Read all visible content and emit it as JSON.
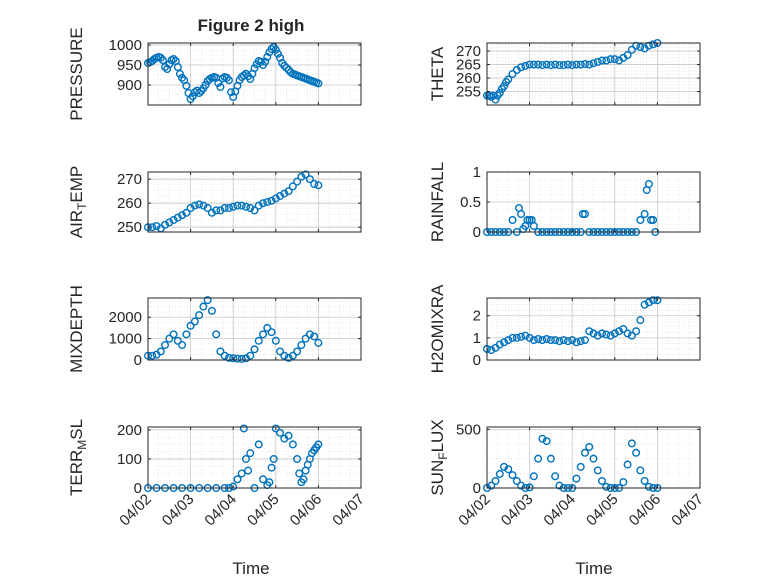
{
  "figure_title": "Figure 2 high",
  "x_axis_label": "Time",
  "x_tick_labels": [
    "04/02",
    "04/03",
    "04/04",
    "04/05",
    "04/06",
    "04/07"
  ],
  "marker_color": "#0072BD",
  "chart_data": [
    {
      "type": "scatter",
      "id": "pressure",
      "title": "Figure 2 high",
      "ylabel": "PRESSURE",
      "xlim": [
        0,
        5
      ],
      "ylim": [
        850,
        1005
      ],
      "yticks": [
        900,
        950,
        1000
      ],
      "grid": true,
      "x": [
        0.0,
        0.05,
        0.1,
        0.15,
        0.2,
        0.25,
        0.3,
        0.35,
        0.4,
        0.45,
        0.5,
        0.55,
        0.6,
        0.65,
        0.7,
        0.75,
        0.8,
        0.85,
        0.9,
        0.95,
        1.0,
        1.05,
        1.1,
        1.15,
        1.2,
        1.25,
        1.3,
        1.35,
        1.4,
        1.45,
        1.5,
        1.55,
        1.6,
        1.65,
        1.7,
        1.75,
        1.8,
        1.85,
        1.9,
        1.95,
        2.0,
        2.05,
        2.1,
        2.15,
        2.2,
        2.25,
        2.3,
        2.35,
        2.4,
        2.45,
        2.5,
        2.55,
        2.6,
        2.65,
        2.7,
        2.75,
        2.8,
        2.85,
        2.9,
        2.95,
        3.0,
        3.05,
        3.1,
        3.15,
        3.2,
        3.25,
        3.3,
        3.35,
        3.4,
        3.45,
        3.5,
        3.55,
        3.6,
        3.65,
        3.7,
        3.75,
        3.8,
        3.85,
        3.9,
        3.95,
        4.0
      ],
      "y": [
        955,
        957,
        960,
        965,
        968,
        970,
        968,
        962,
        945,
        940,
        952,
        962,
        965,
        960,
        945,
        928,
        918,
        912,
        898,
        880,
        865,
        872,
        882,
        886,
        880,
        885,
        892,
        900,
        910,
        915,
        918,
        920,
        918,
        905,
        895,
        916,
        920,
        918,
        912,
        882,
        870,
        884,
        898,
        912,
        920,
        924,
        928,
        922,
        915,
        928,
        942,
        952,
        960,
        958,
        950,
        958,
        970,
        982,
        990,
        995,
        988,
        978,
        968,
        955,
        948,
        943,
        938,
        932,
        928,
        926,
        924,
        922,
        920,
        918,
        916,
        914,
        912,
        910,
        908,
        906,
        904
      ],
      "point_count_note": ""
    },
    {
      "type": "scatter",
      "id": "theta",
      "ylabel": "THETA",
      "xlim": [
        0,
        5
      ],
      "ylim": [
        250,
        273
      ],
      "yticks": [
        255,
        260,
        265,
        270
      ],
      "grid": true,
      "x": [
        0.0,
        0.05,
        0.1,
        0.15,
        0.2,
        0.25,
        0.3,
        0.35,
        0.4,
        0.45,
        0.5,
        0.6,
        0.7,
        0.8,
        0.9,
        1.0,
        1.1,
        1.2,
        1.3,
        1.4,
        1.5,
        1.6,
        1.7,
        1.8,
        1.9,
        2.0,
        2.1,
        2.2,
        2.3,
        2.4,
        2.5,
        2.6,
        2.7,
        2.8,
        2.9,
        3.0,
        3.1,
        3.2,
        3.3,
        3.4,
        3.5,
        3.6,
        3.7,
        3.8,
        3.9,
        4.0
      ],
      "y": [
        253.5,
        253.5,
        253.0,
        253.5,
        252.0,
        253.5,
        254.5,
        256.0,
        257.0,
        258.5,
        259.5,
        261.5,
        263.0,
        264.0,
        264.5,
        265.0,
        265.0,
        265.0,
        264.8,
        265.0,
        264.8,
        265.0,
        264.8,
        264.8,
        265.0,
        264.8,
        265.0,
        265.0,
        265.2,
        265.0,
        265.5,
        266.0,
        266.5,
        266.5,
        267.0,
        267.0,
        266.5,
        267.5,
        268.5,
        270.5,
        272.0,
        271.5,
        271.0,
        272.0,
        272.5,
        273.0
      ]
    },
    {
      "type": "scatter",
      "id": "air_temp",
      "ylabel": "AIR_TEMP",
      "ylabel_main": "AIR",
      "ylabel_sub": "T",
      "ylabel_rest": "EMP",
      "xlim": [
        0,
        5
      ],
      "ylim": [
        248,
        273
      ],
      "yticks": [
        250,
        260,
        270
      ],
      "grid": true,
      "x": [
        0.0,
        0.1,
        0.2,
        0.3,
        0.4,
        0.5,
        0.6,
        0.7,
        0.8,
        0.9,
        1.0,
        1.1,
        1.2,
        1.3,
        1.4,
        1.5,
        1.6,
        1.7,
        1.8,
        1.9,
        2.0,
        2.1,
        2.2,
        2.3,
        2.4,
        2.5,
        2.6,
        2.7,
        2.8,
        2.9,
        3.0,
        3.1,
        3.2,
        3.3,
        3.4,
        3.5,
        3.6,
        3.7,
        3.8,
        3.9,
        4.0
      ],
      "y": [
        250,
        250,
        250.5,
        249.5,
        251,
        252,
        253,
        254,
        255,
        256,
        258,
        259,
        259.5,
        259,
        258,
        256,
        257,
        257,
        258,
        258,
        258.5,
        259,
        259,
        258.5,
        258,
        257,
        259,
        260,
        260.5,
        261,
        262,
        263,
        264,
        265,
        267,
        269,
        271,
        272,
        270,
        268,
        267.5
      ]
    },
    {
      "type": "scatter",
      "id": "rainfall",
      "ylabel": "RAINFALL",
      "xlim": [
        0,
        5
      ],
      "ylim": [
        0,
        1
      ],
      "yticks": [
        0,
        0.5,
        1
      ],
      "ytick_labels": [
        "0",
        "0.5",
        "1"
      ],
      "grid": true,
      "x": [
        0.0,
        0.1,
        0.2,
        0.3,
        0.4,
        0.5,
        0.6,
        0.7,
        0.75,
        0.8,
        0.85,
        0.9,
        0.95,
        1.0,
        1.05,
        1.1,
        1.2,
        1.3,
        1.4,
        1.5,
        1.6,
        1.7,
        1.8,
        1.9,
        2.0,
        2.1,
        2.2,
        2.25,
        2.3,
        2.4,
        2.5,
        2.6,
        2.7,
        2.8,
        2.9,
        3.0,
        3.1,
        3.2,
        3.3,
        3.4,
        3.5,
        3.6,
        3.7,
        3.75,
        3.8,
        3.85,
        3.9,
        3.95
      ],
      "y": [
        0,
        0,
        0,
        0,
        0,
        0,
        0.2,
        0,
        0.4,
        0.3,
        0.05,
        0.1,
        0.2,
        0.2,
        0.2,
        0.1,
        0,
        0,
        0,
        0,
        0,
        0,
        0,
        0,
        0,
        0,
        0,
        0.3,
        0.3,
        0,
        0,
        0,
        0,
        0,
        0,
        0,
        0,
        0,
        0,
        0,
        0,
        0.2,
        0.3,
        0.7,
        0.8,
        0.2,
        0.2,
        0
      ]
    },
    {
      "type": "scatter",
      "id": "mixdepth",
      "ylabel": "MIXDEPTH",
      "xlim": [
        0,
        5
      ],
      "ylim": [
        0,
        2900
      ],
      "yticks": [
        0,
        1000,
        2000
      ],
      "grid": true,
      "x": [
        0.0,
        0.1,
        0.2,
        0.3,
        0.4,
        0.5,
        0.6,
        0.7,
        0.8,
        0.9,
        1.0,
        1.1,
        1.2,
        1.3,
        1.4,
        1.5,
        1.6,
        1.7,
        1.8,
        1.9,
        2.0,
        2.1,
        2.2,
        2.3,
        2.4,
        2.5,
        2.6,
        2.7,
        2.8,
        2.9,
        3.0,
        3.1,
        3.2,
        3.3,
        3.4,
        3.5,
        3.6,
        3.7,
        3.8,
        3.9,
        4.0
      ],
      "y": [
        200,
        200,
        250,
        400,
        700,
        1000,
        1200,
        900,
        700,
        1200,
        1600,
        1800,
        2100,
        2500,
        2800,
        2300,
        1200,
        400,
        200,
        100,
        80,
        60,
        50,
        80,
        200,
        500,
        900,
        1200,
        1500,
        1300,
        900,
        400,
        200,
        100,
        200,
        400,
        700,
        1000,
        1200,
        1100,
        800
      ]
    },
    {
      "type": "scatter",
      "id": "h2omixra",
      "ylabel": "H2OMIXRA",
      "xlim": [
        0,
        5
      ],
      "ylim": [
        0,
        2.8
      ],
      "yticks": [
        0,
        1,
        2
      ],
      "grid": true,
      "x": [
        0.0,
        0.1,
        0.2,
        0.3,
        0.4,
        0.5,
        0.6,
        0.7,
        0.8,
        0.9,
        1.0,
        1.1,
        1.2,
        1.3,
        1.4,
        1.5,
        1.6,
        1.7,
        1.8,
        1.9,
        2.0,
        2.1,
        2.2,
        2.3,
        2.4,
        2.5,
        2.6,
        2.7,
        2.8,
        2.9,
        3.0,
        3.1,
        3.2,
        3.3,
        3.4,
        3.5,
        3.6,
        3.7,
        3.8,
        3.9,
        4.0
      ],
      "y": [
        0.5,
        0.45,
        0.55,
        0.7,
        0.8,
        0.9,
        1.0,
        1.0,
        1.05,
        1.1,
        1.0,
        0.9,
        0.95,
        0.9,
        0.95,
        0.9,
        0.9,
        0.85,
        0.9,
        0.85,
        0.9,
        0.8,
        0.85,
        0.9,
        1.3,
        1.2,
        1.1,
        1.2,
        1.15,
        1.1,
        1.2,
        1.3,
        1.4,
        1.2,
        1.1,
        1.3,
        1.8,
        2.5,
        2.6,
        2.7,
        2.7
      ]
    },
    {
      "type": "scatter",
      "id": "terr_msl",
      "ylabel": "TERR_MSL",
      "ylabel_main": "TERR",
      "ylabel_sub": "M",
      "ylabel_rest": "SL",
      "xlim": [
        0,
        5
      ],
      "ylim": [
        0,
        210
      ],
      "yticks": [
        0,
        100,
        200
      ],
      "grid": true,
      "x": [
        0.0,
        0.2,
        0.4,
        0.6,
        0.8,
        1.0,
        1.2,
        1.4,
        1.6,
        1.8,
        1.9,
        2.0,
        2.1,
        2.2,
        2.25,
        2.3,
        2.35,
        2.4,
        2.5,
        2.6,
        2.7,
        2.8,
        2.85,
        2.9,
        2.95,
        3.0,
        3.1,
        3.2,
        3.3,
        3.4,
        3.5,
        3.55,
        3.6,
        3.65,
        3.7,
        3.75,
        3.8,
        3.85,
        3.9,
        3.95,
        4.0
      ],
      "y": [
        0,
        0,
        0,
        0,
        0,
        0,
        0,
        0,
        0,
        0,
        0,
        5,
        30,
        50,
        205,
        100,
        60,
        120,
        0,
        150,
        30,
        10,
        20,
        70,
        100,
        205,
        190,
        170,
        180,
        150,
        100,
        50,
        20,
        30,
        60,
        80,
        100,
        120,
        130,
        140,
        150
      ]
    },
    {
      "type": "scatter",
      "id": "sun_flux",
      "ylabel": "SUN_FLUX",
      "ylabel_main": "SUN",
      "ylabel_sub": "F",
      "ylabel_rest": "LUX",
      "xlim": [
        0,
        5
      ],
      "ylim": [
        0,
        520
      ],
      "yticks": [
        0,
        500
      ],
      "grid": true,
      "x": [
        0.0,
        0.1,
        0.2,
        0.3,
        0.4,
        0.5,
        0.6,
        0.7,
        0.8,
        0.9,
        1.0,
        1.1,
        1.2,
        1.3,
        1.4,
        1.5,
        1.6,
        1.7,
        1.8,
        1.9,
        2.0,
        2.1,
        2.2,
        2.3,
        2.4,
        2.5,
        2.6,
        2.7,
        2.8,
        2.9,
        3.0,
        3.1,
        3.2,
        3.3,
        3.4,
        3.5,
        3.6,
        3.7,
        3.8,
        3.9,
        4.0
      ],
      "y": [
        0,
        20,
        60,
        120,
        180,
        160,
        110,
        60,
        20,
        0,
        5,
        100,
        250,
        420,
        400,
        250,
        100,
        20,
        0,
        0,
        0,
        80,
        180,
        300,
        350,
        250,
        150,
        60,
        10,
        0,
        0,
        0,
        50,
        200,
        380,
        300,
        150,
        60,
        10,
        0,
        0
      ]
    }
  ]
}
